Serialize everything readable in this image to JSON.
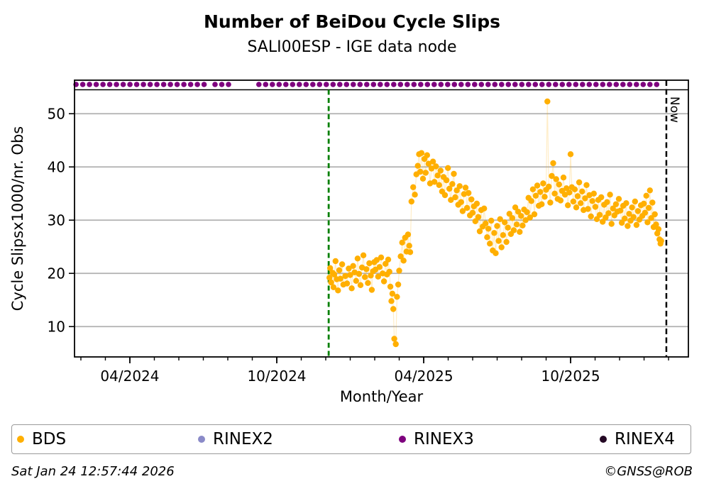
{
  "header": {
    "title": "Number of BeiDou Cycle Slips",
    "subtitle": "SALI00ESP - IGE data node"
  },
  "footer": {
    "timestamp": "Sat Jan 24 12:57:44 2026",
    "credit": "©GNSS@ROB"
  },
  "legend": {
    "items": [
      {
        "label": "BDS",
        "color": "#FFAF00"
      },
      {
        "label": "RINEX2",
        "color": "#8A8AC8"
      },
      {
        "label": "RINEX3",
        "color": "#7E017E"
      },
      {
        "label": "RINEX4",
        "color": "#240824"
      }
    ]
  },
  "chart_data": {
    "type": "scatter",
    "title": "Number of BeiDou Cycle Slips",
    "subtitle": "SALI00ESP - IGE data node",
    "xlabel": "Month/Year",
    "ylabel": "Cycle Slipsx1000/nr. Obs",
    "x_unit": "months since 2024-01 (0 = Jan 2024, 3 = Apr 2024)",
    "xlim": [
      0.74,
      25.81
    ],
    "ylim": [
      4.3,
      56.3
    ],
    "yticks": [
      10,
      20,
      30,
      40,
      50
    ],
    "xticks_major": [
      {
        "x": 3,
        "label": "04/2024"
      },
      {
        "x": 9,
        "label": "10/2024"
      },
      {
        "x": 15,
        "label": "04/2025"
      },
      {
        "x": 21,
        "label": "10/2025"
      }
    ],
    "xticks_minor": "every month from 1 to 25",
    "grid": "horizontal only",
    "grid_color": "#b0b0b0",
    "annotations": {
      "event_line": {
        "x": 11.12,
        "color": "#007F00",
        "style": "dashed",
        "span": "strip-bottom to x-axis"
      },
      "now_line": {
        "x": 24.91,
        "label": "Now",
        "color": "#000000",
        "style": "dashed"
      }
    },
    "availability_strip": {
      "name": "RINEX3",
      "y_value": 55.5,
      "separator_y_value": 54.5,
      "color": "#7E017E",
      "segments": [
        [
          0.8,
          6.19
        ],
        [
          6.48,
          7.06
        ],
        [
          8.27,
          24.71
        ]
      ]
    },
    "series": [
      {
        "name": "BDS",
        "color": "#FFAF00",
        "marker_radius_px": 4.2,
        "connect_line_opacity": 0.22,
        "points": [
          [
            11.15,
            19.2
          ],
          [
            11.18,
            21.0
          ],
          [
            11.22,
            18.3
          ],
          [
            11.28,
            20.1
          ],
          [
            11.32,
            17.4
          ],
          [
            11.35,
            19.8
          ],
          [
            11.4,
            22.3
          ],
          [
            11.45,
            18.9
          ],
          [
            11.5,
            16.8
          ],
          [
            11.55,
            20.6
          ],
          [
            11.6,
            19.0
          ],
          [
            11.67,
            21.7
          ],
          [
            11.72,
            17.9
          ],
          [
            11.8,
            19.5
          ],
          [
            11.87,
            18.1
          ],
          [
            11.94,
            20.9
          ],
          [
            12.0,
            19.7
          ],
          [
            12.06,
            17.2
          ],
          [
            12.12,
            21.4
          ],
          [
            12.18,
            20.2
          ],
          [
            12.24,
            18.6
          ],
          [
            12.3,
            22.8
          ],
          [
            12.36,
            19.9
          ],
          [
            12.42,
            17.8
          ],
          [
            12.48,
            21.1
          ],
          [
            12.54,
            23.4
          ],
          [
            12.6,
            19.3
          ],
          [
            12.66,
            20.8
          ],
          [
            12.72,
            18.2
          ],
          [
            12.78,
            21.9
          ],
          [
            12.84,
            19.6
          ],
          [
            12.88,
            16.9
          ],
          [
            12.93,
            20.4
          ],
          [
            12.98,
            22.1
          ],
          [
            13.03,
            20.7
          ],
          [
            13.08,
            22.5
          ],
          [
            13.14,
            19.4
          ],
          [
            13.2,
            21.2
          ],
          [
            13.26,
            23.0
          ],
          [
            13.32,
            20.0
          ],
          [
            13.38,
            18.5
          ],
          [
            13.44,
            21.8
          ],
          [
            13.5,
            19.8
          ],
          [
            13.55,
            22.6
          ],
          [
            13.6,
            20.3
          ],
          [
            13.64,
            17.5
          ],
          [
            13.68,
            14.8
          ],
          [
            13.72,
            16.2
          ],
          [
            13.76,
            13.3
          ],
          [
            13.8,
            7.7
          ],
          [
            13.86,
            6.7
          ],
          [
            13.91,
            15.6
          ],
          [
            13.96,
            17.9
          ],
          [
            14.0,
            20.5
          ],
          [
            14.06,
            23.2
          ],
          [
            14.12,
            25.8
          ],
          [
            14.18,
            22.4
          ],
          [
            14.24,
            26.7
          ],
          [
            14.3,
            24.1
          ],
          [
            14.36,
            27.3
          ],
          [
            14.41,
            25.2
          ],
          [
            14.45,
            24.0
          ],
          [
            14.5,
            33.5
          ],
          [
            14.57,
            36.2
          ],
          [
            14.64,
            34.8
          ],
          [
            14.7,
            38.6
          ],
          [
            14.76,
            40.2
          ],
          [
            14.81,
            42.4
          ],
          [
            14.86,
            39.1
          ],
          [
            14.91,
            42.6
          ],
          [
            14.97,
            37.8
          ],
          [
            15.03,
            41.5
          ],
          [
            15.08,
            38.9
          ],
          [
            15.14,
            42.2
          ],
          [
            15.2,
            40.6
          ],
          [
            15.26,
            36.9
          ],
          [
            15.32,
            39.7
          ],
          [
            15.38,
            41.0
          ],
          [
            15.44,
            37.2
          ],
          [
            15.5,
            40.1
          ],
          [
            15.57,
            38.4
          ],
          [
            15.63,
            36.6
          ],
          [
            15.69,
            39.3
          ],
          [
            15.75,
            35.4
          ],
          [
            15.81,
            38.1
          ],
          [
            15.87,
            34.7
          ],
          [
            15.93,
            37.5
          ],
          [
            15.99,
            39.8
          ],
          [
            16.05,
            35.9
          ],
          [
            16.11,
            33.8
          ],
          [
            16.17,
            36.8
          ],
          [
            16.23,
            38.7
          ],
          [
            16.29,
            34.3
          ],
          [
            16.35,
            35.6
          ],
          [
            16.41,
            32.9
          ],
          [
            16.47,
            36.4
          ],
          [
            16.53,
            33.4
          ],
          [
            16.59,
            31.7
          ],
          [
            16.65,
            34.9
          ],
          [
            16.71,
            36.1
          ],
          [
            16.77,
            32.3
          ],
          [
            16.83,
            35.1
          ],
          [
            16.89,
            30.9
          ],
          [
            16.95,
            33.9
          ],
          [
            17.0,
            31.4
          ],
          [
            17.05,
            32.6
          ],
          [
            17.11,
            29.8
          ],
          [
            17.17,
            33.1
          ],
          [
            17.23,
            30.6
          ],
          [
            17.29,
            27.9
          ],
          [
            17.35,
            31.9
          ],
          [
            17.41,
            28.8
          ],
          [
            17.47,
            32.2
          ],
          [
            17.53,
            29.4
          ],
          [
            17.59,
            26.8
          ],
          [
            17.64,
            28.4
          ],
          [
            17.7,
            25.6
          ],
          [
            17.76,
            29.9
          ],
          [
            17.82,
            24.3
          ],
          [
            17.88,
            27.6
          ],
          [
            17.94,
            23.8
          ],
          [
            18.0,
            28.9
          ],
          [
            18.06,
            26.1
          ],
          [
            18.12,
            30.2
          ],
          [
            18.18,
            24.9
          ],
          [
            18.24,
            27.2
          ],
          [
            18.31,
            29.6
          ],
          [
            18.38,
            25.9
          ],
          [
            18.44,
            28.6
          ],
          [
            18.5,
            31.2
          ],
          [
            18.56,
            27.4
          ],
          [
            18.62,
            30.4
          ],
          [
            18.68,
            28.1
          ],
          [
            18.74,
            32.4
          ],
          [
            18.8,
            29.2
          ],
          [
            18.86,
            31.6
          ],
          [
            18.92,
            27.8
          ],
          [
            18.98,
            30.8
          ],
          [
            19.04,
            29.0
          ],
          [
            19.1,
            32.0
          ],
          [
            19.16,
            30.0
          ],
          [
            19.22,
            31.5
          ],
          [
            19.28,
            34.2
          ],
          [
            19.34,
            30.5
          ],
          [
            19.4,
            33.6
          ],
          [
            19.46,
            35.8
          ],
          [
            19.52,
            31.1
          ],
          [
            19.58,
            34.6
          ],
          [
            19.64,
            36.5
          ],
          [
            19.7,
            32.7
          ],
          [
            19.76,
            35.3
          ],
          [
            19.82,
            33.0
          ],
          [
            19.88,
            36.9
          ],
          [
            19.94,
            34.4
          ],
          [
            20.0,
            35.7
          ],
          [
            20.05,
            52.3
          ],
          [
            20.11,
            36.3
          ],
          [
            20.17,
            33.3
          ],
          [
            20.23,
            38.3
          ],
          [
            20.29,
            40.7
          ],
          [
            20.35,
            35.0
          ],
          [
            20.41,
            37.7
          ],
          [
            20.47,
            34.0
          ],
          [
            20.53,
            36.7
          ],
          [
            20.59,
            33.7
          ],
          [
            20.65,
            35.5
          ],
          [
            20.71,
            38.0
          ],
          [
            20.77,
            34.8
          ],
          [
            20.83,
            36.0
          ],
          [
            20.89,
            32.8
          ],
          [
            20.95,
            35.2
          ],
          [
            21.0,
            42.4
          ],
          [
            21.05,
            36.2
          ],
          [
            21.11,
            33.5
          ],
          [
            21.17,
            35.8
          ],
          [
            21.23,
            32.4
          ],
          [
            21.29,
            34.5
          ],
          [
            21.35,
            37.1
          ],
          [
            21.41,
            33.2
          ],
          [
            21.47,
            35.4
          ],
          [
            21.53,
            31.9
          ],
          [
            21.59,
            34.1
          ],
          [
            21.65,
            36.6
          ],
          [
            21.71,
            32.1
          ],
          [
            21.77,
            34.7
          ],
          [
            21.83,
            30.7
          ],
          [
            21.89,
            33.6
          ],
          [
            21.95,
            35.0
          ],
          [
            22.01,
            32.5
          ],
          [
            22.07,
            30.2
          ],
          [
            22.13,
            33.8
          ],
          [
            22.19,
            31.0
          ],
          [
            22.25,
            34.3
          ],
          [
            22.31,
            29.7
          ],
          [
            22.37,
            32.9
          ],
          [
            22.43,
            30.5
          ],
          [
            22.49,
            33.4
          ],
          [
            22.55,
            31.3
          ],
          [
            22.61,
            34.8
          ],
          [
            22.67,
            29.3
          ],
          [
            22.73,
            32.2
          ],
          [
            22.79,
            30.9
          ],
          [
            22.85,
            33.0
          ],
          [
            22.91,
            31.6
          ],
          [
            22.97,
            34.0
          ],
          [
            23.03,
            31.8
          ],
          [
            23.09,
            29.5
          ],
          [
            23.15,
            32.7
          ],
          [
            23.21,
            30.3
          ],
          [
            23.27,
            33.2
          ],
          [
            23.33,
            28.9
          ],
          [
            23.39,
            31.2
          ],
          [
            23.45,
            29.9
          ],
          [
            23.51,
            32.4
          ],
          [
            23.57,
            30.6
          ],
          [
            23.63,
            33.5
          ],
          [
            23.69,
            29.1
          ],
          [
            23.75,
            31.7
          ],
          [
            23.81,
            30.1
          ],
          [
            23.87,
            32.8
          ],
          [
            23.93,
            30.8
          ],
          [
            23.99,
            33.1
          ],
          [
            24.04,
            31.4
          ],
          [
            24.09,
            34.6
          ],
          [
            24.14,
            29.6
          ],
          [
            24.19,
            32.3
          ],
          [
            24.24,
            35.6
          ],
          [
            24.29,
            30.4
          ],
          [
            24.34,
            33.3
          ],
          [
            24.39,
            28.7
          ],
          [
            24.44,
            31.1
          ],
          [
            24.49,
            29.2
          ],
          [
            24.54,
            27.5
          ],
          [
            24.59,
            28.3
          ],
          [
            24.63,
            26.4
          ],
          [
            24.67,
            25.6
          ],
          [
            24.7,
            26.1
          ]
        ]
      }
    ]
  }
}
